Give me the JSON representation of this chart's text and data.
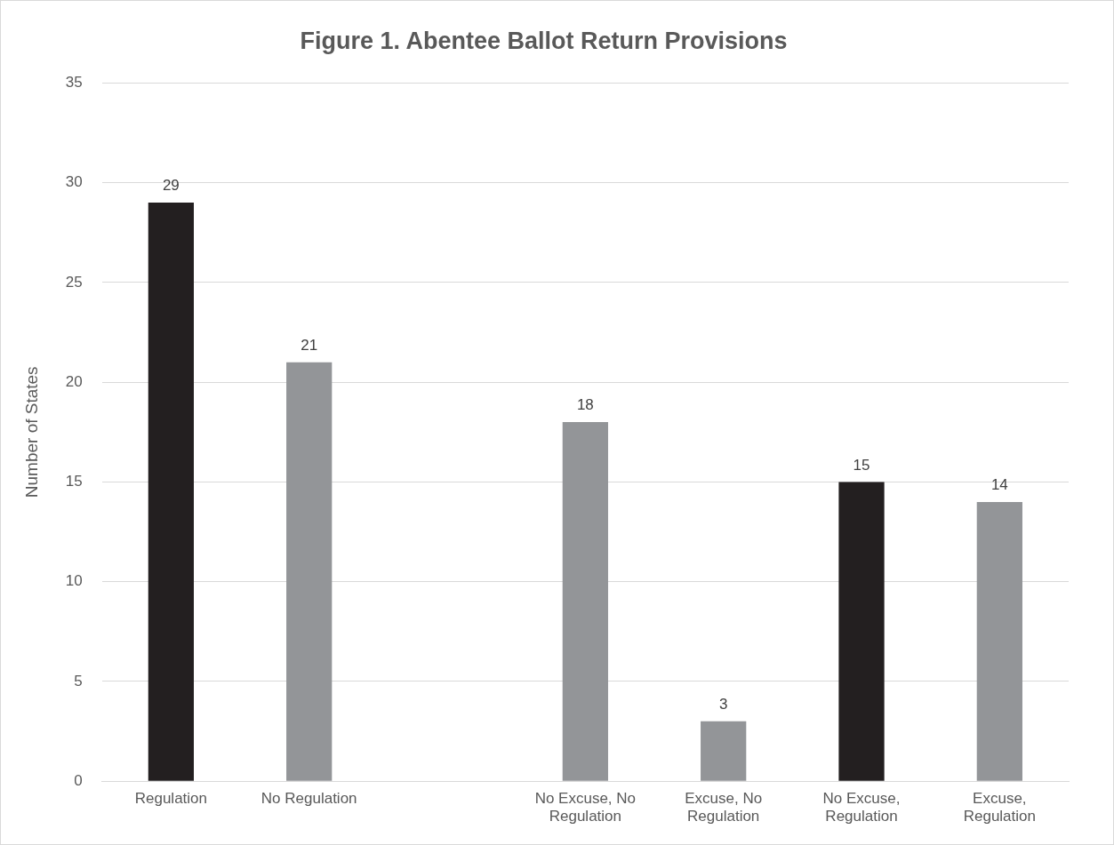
{
  "chart_data": {
    "type": "bar",
    "title": "Figure 1. Abentee Ballot Return Provisions",
    "ylabel": "Number of States",
    "categories": [
      "Regulation",
      "No Regulation",
      null,
      "No Excuse, No Regulation",
      "Excuse, No Regulation",
      "No Excuse, Regulation",
      "Excuse, Regulation"
    ],
    "values": [
      29,
      21,
      null,
      18,
      3,
      15,
      14
    ],
    "colors": [
      "#231f20",
      "#939598",
      null,
      "#939598",
      "#939598",
      "#231f20",
      "#939598"
    ],
    "ylim": [
      0,
      35
    ],
    "yticks": [
      0,
      5,
      10,
      15,
      20,
      25,
      30,
      35
    ],
    "grid": "y",
    "data_labels": true,
    "legend": false
  }
}
